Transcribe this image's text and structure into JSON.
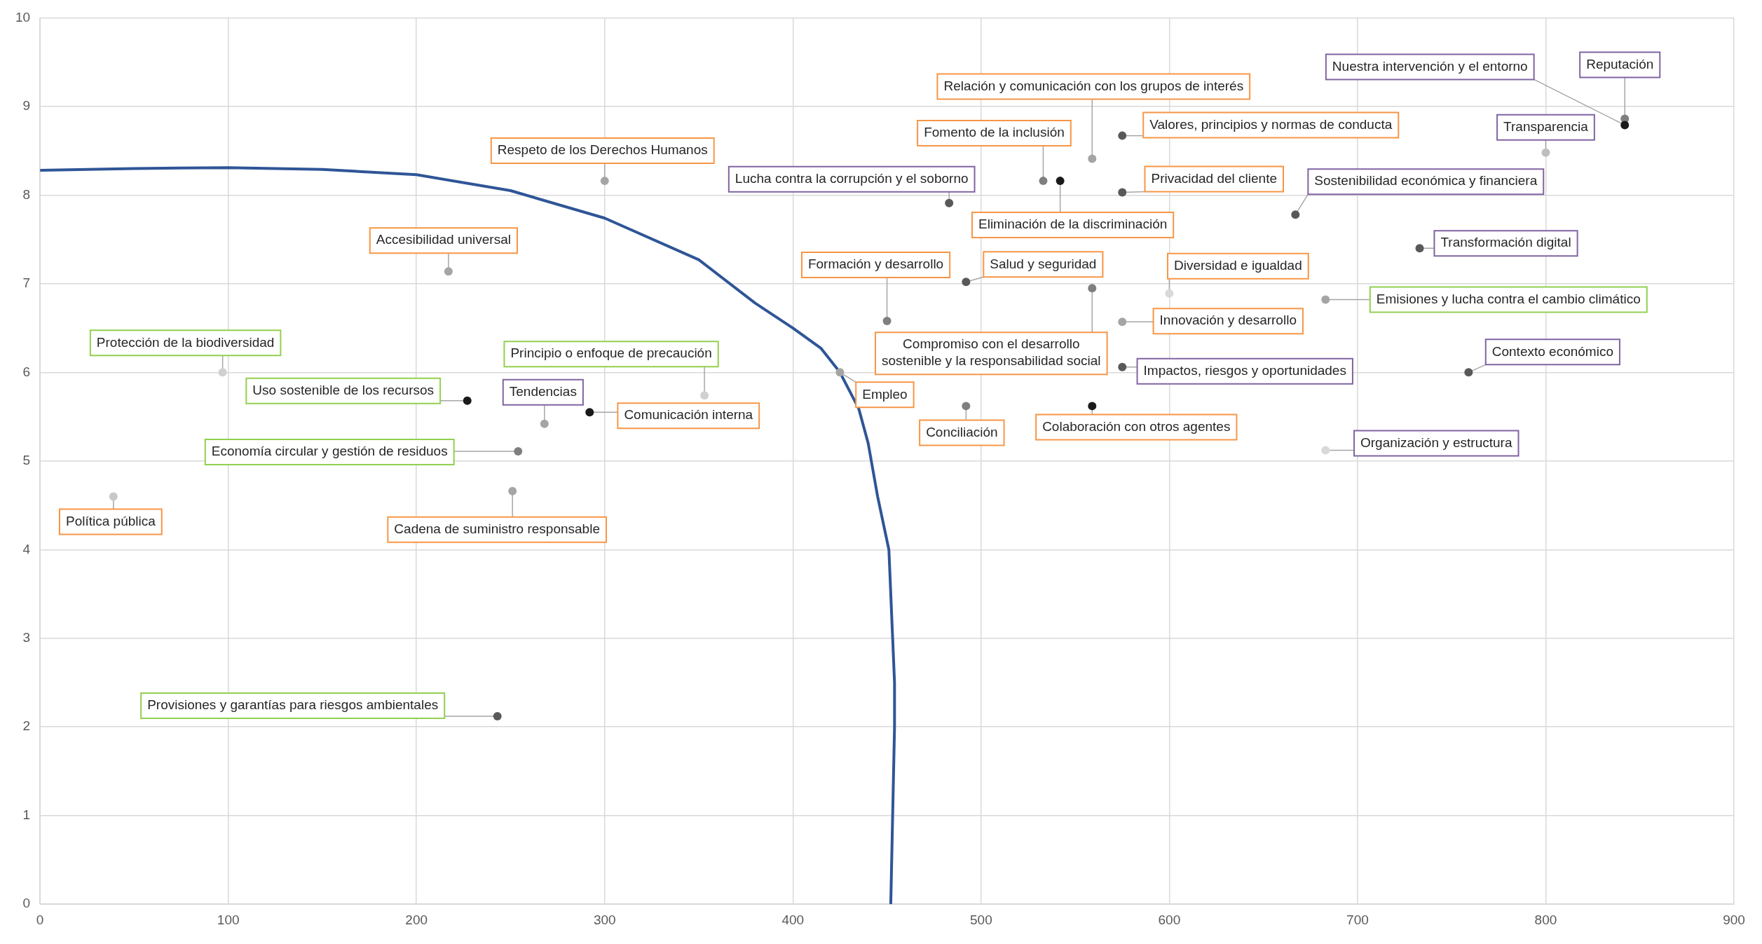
{
  "chart_data": {
    "type": "scatter",
    "xlim": [
      0,
      900
    ],
    "ylim": [
      0,
      10
    ],
    "xticks": [
      0,
      100,
      200,
      300,
      400,
      500,
      600,
      700,
      800,
      900
    ],
    "yticks": [
      0,
      1,
      2,
      3,
      4,
      5,
      6,
      7,
      8,
      9,
      10
    ],
    "grid": true,
    "marker": "circle",
    "series": [
      {
        "x": [
          300,
          217,
          292,
          425,
          39,
          251,
          559,
          575,
          533,
          542,
          575,
          492,
          450,
          559,
          600,
          575,
          492,
          559
        ],
        "values": [
          8.16,
          7.14,
          5.55,
          6.0,
          4.6,
          4.66,
          8.41,
          8.67,
          8.16,
          8.16,
          8.03,
          7.02,
          6.58,
          6.95,
          6.89,
          6.57,
          5.62,
          5.62
        ],
        "colors": [
          "#a5a5a5",
          "#a5a5a5",
          "#1a1a1a",
          "#a5a5a5",
          "#c8c8c8",
          "#a5a5a5",
          "#a5a5a5",
          "#595959",
          "#7f7f7f",
          "#1a1a1a",
          "#595959",
          "#595959",
          "#7f7f7f",
          "#7f7f7f",
          "#d9d9d9",
          "#a5a5a5",
          "#7f7f7f",
          "#1a1a1a"
        ],
        "value_labels": [
          "Respeto de los Derechos Humanos",
          "Accesibilidad universal",
          "Comunicación interna",
          "Empleo",
          "Política pública",
          "Cadena de suministro responsable",
          "Relación y comunicación con los grupos de interés",
          "Valores, principios y normas de conducta",
          "Fomento de la inclusión",
          "Eliminación de la discriminación",
          "Privacidad del cliente",
          "Salud y seguridad",
          "Formación y desarrollo",
          "Compromiso con el desarrollo\nsostenible y la responsabilidad social",
          "Diversidad e igualdad",
          "Innovación y desarrollo",
          "Conciliación",
          "Colaboración con otros agentes"
        ]
      },
      {
        "x": [
          97,
          227,
          353,
          254,
          243,
          683
        ],
        "values": [
          6.0,
          5.68,
          5.74,
          5.11,
          2.12,
          6.82
        ],
        "colors": [
          "#d0d0d0",
          "#1a1a1a",
          "#d0d0d0",
          "#7f7f7f",
          "#595959",
          "#a5a5a5"
        ],
        "value_labels": [
          "Protección de la biodiversidad",
          "Uso sostenible de los recursos",
          "Principio o enfoque de precaución",
          "Economía circular y gestión de residuos",
          "Provisiones y garantías para riesgos ambientales",
          "Emisiones y lucha contra el cambio climático"
        ]
      },
      {
        "x": [
          268,
          483,
          842,
          842,
          800,
          667,
          733,
          575,
          759,
          683
        ],
        "values": [
          5.42,
          7.91,
          8.86,
          8.79,
          8.48,
          7.78,
          7.4,
          6.06,
          6.0,
          5.12
        ],
        "colors": [
          "#a5a5a5",
          "#595959",
          "#7f7f7f",
          "#1a1a1a",
          "#bfbfbf",
          "#595959",
          "#595959",
          "#595959",
          "#595959",
          "#d9d9d9"
        ],
        "value_labels": [
          "Tendencias",
          "Lucha contra la corrupción y el soborno",
          "Reputación",
          "Nuestra intervención y el entorno",
          "Transparencia",
          "Sostenibilidad económica y financiera",
          "Transformación digital",
          "Impactos, riesgos y oportunidades",
          "Contexto económico",
          "Organización y estructura"
        ]
      },
      {
        "type": "line",
        "color": "#2f5597",
        "marker": "none",
        "line_style": "solid",
        "x": [
          0,
          50,
          100,
          150,
          200,
          250,
          300,
          350,
          380,
          400,
          415,
          425,
          435,
          440,
          445,
          449,
          451,
          453,
          454,
          454,
          453,
          452
        ],
        "values": [
          8.28,
          8.3,
          8.31,
          8.29,
          8.23,
          8.05,
          7.74,
          7.27,
          6.78,
          6.5,
          6.27,
          6.0,
          5.59,
          5.2,
          4.6,
          4.2,
          4.0,
          3.0,
          2.5,
          2.0,
          1.0,
          0
        ]
      }
    ]
  }
}
